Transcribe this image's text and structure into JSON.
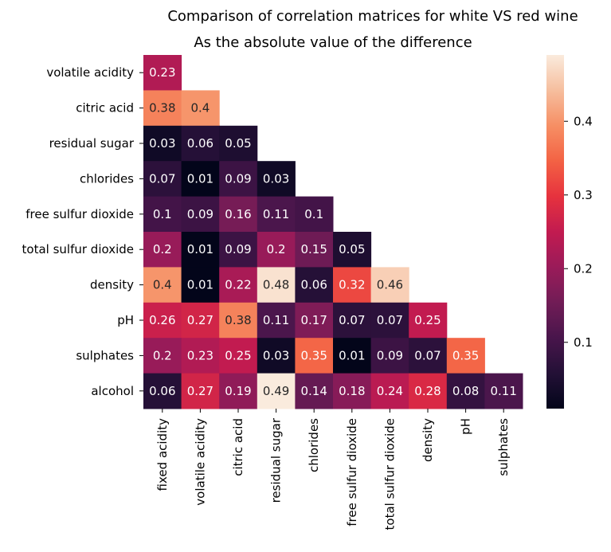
{
  "chart_data": {
    "type": "heatmap",
    "title": "Comparison of correlation matrices for white VS red wine",
    "subtitle": "As the absolute value of the difference",
    "rows": [
      "volatile acidity",
      "citric acid",
      "residual sugar",
      "chlorides",
      "free sulfur dioxide",
      "total sulfur dioxide",
      "density",
      "pH",
      "sulphates",
      "alcohol"
    ],
    "columns": [
      "fixed acidity",
      "volatile acidity",
      "citric acid",
      "residual sugar",
      "chlorides",
      "free sulfur dioxide",
      "total sulfur dioxide",
      "density",
      "pH",
      "sulphates"
    ],
    "values": [
      [
        0.23
      ],
      [
        0.38,
        0.4
      ],
      [
        0.03,
        0.06,
        0.05
      ],
      [
        0.07,
        0.01,
        0.09,
        0.03
      ],
      [
        0.1,
        0.09,
        0.16,
        0.11,
        0.1
      ],
      [
        0.2,
        0.01,
        0.09,
        0.2,
        0.15,
        0.05
      ],
      [
        0.4,
        0.01,
        0.22,
        0.48,
        0.06,
        0.32,
        0.46
      ],
      [
        0.26,
        0.27,
        0.38,
        0.11,
        0.17,
        0.07,
        0.07,
        0.25
      ],
      [
        0.2,
        0.23,
        0.25,
        0.03,
        0.35,
        0.01,
        0.09,
        0.07,
        0.35
      ],
      [
        0.06,
        0.27,
        0.19,
        0.49,
        0.14,
        0.18,
        0.24,
        0.28,
        0.08,
        0.11
      ]
    ],
    "colormap": "rocket",
    "vmin": 0.01,
    "vmax": 0.49,
    "colorbar_ticks": [
      0.1,
      0.2,
      0.3,
      0.4
    ],
    "annotated": true,
    "mask": "upper triangle"
  }
}
